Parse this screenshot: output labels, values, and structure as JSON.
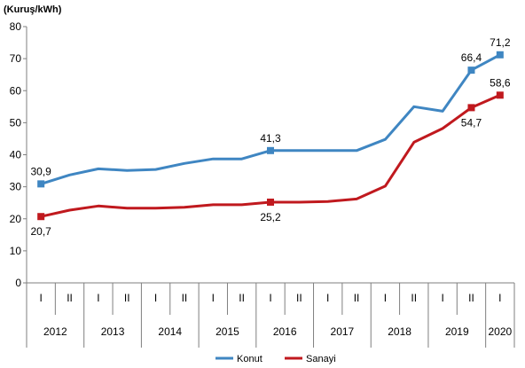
{
  "chart_data": {
    "type": "line",
    "title": "",
    "ylabel": "(Kuruş/kWh)",
    "ylim": [
      0,
      80
    ],
    "yticks": [
      0,
      10,
      20,
      30,
      40,
      50,
      60,
      70,
      80
    ],
    "periods": [
      "I",
      "II",
      "I",
      "II",
      "I",
      "II",
      "I",
      "II",
      "I",
      "II",
      "I",
      "II",
      "I",
      "II",
      "I",
      "II",
      "I"
    ],
    "years": [
      {
        "label": "2012",
        "span": 2
      },
      {
        "label": "2013",
        "span": 2
      },
      {
        "label": "2014",
        "span": 2
      },
      {
        "label": "2015",
        "span": 2
      },
      {
        "label": "2016",
        "span": 2
      },
      {
        "label": "2017",
        "span": 2
      },
      {
        "label": "2018",
        "span": 2
      },
      {
        "label": "2019",
        "span": 2
      },
      {
        "label": "2020",
        "span": 1
      }
    ],
    "series": [
      {
        "name": "Konut",
        "color": "#3f86c2",
        "x": [
          0,
          0.5,
          1,
          1.5,
          2,
          2.5,
          3,
          3.5,
          4,
          4.5,
          5,
          5.5,
          6,
          6.5,
          7,
          7.5,
          8
        ],
        "values": [
          30.9,
          33.7,
          35.6,
          35.1,
          35.4,
          37.3,
          38.7,
          38.7,
          41.3,
          41.3,
          41.3,
          41.3,
          44.8,
          55.0,
          53.6,
          66.4,
          71.2
        ],
        "markers": [
          0,
          8,
          15,
          16
        ],
        "marker_labels": [
          "30,9",
          "41,3",
          "66,4",
          "71,2"
        ],
        "label_pos": [
          "above",
          "above",
          "above",
          "above"
        ]
      },
      {
        "name": "Sanayi",
        "color": "#c0191e",
        "x": [
          0,
          0.5,
          1,
          1.5,
          2,
          2.5,
          3,
          3.5,
          4,
          4.5,
          5,
          5.5,
          6,
          6.5,
          7,
          7.5,
          8
        ],
        "values": [
          20.7,
          22.7,
          24.0,
          23.3,
          23.3,
          23.6,
          24.4,
          24.4,
          25.2,
          25.2,
          25.4,
          26.2,
          30.2,
          43.9,
          48.2,
          54.7,
          58.6
        ],
        "markers": [
          0,
          8,
          15,
          16
        ],
        "marker_labels": [
          "20,7",
          "25,2",
          "54,7",
          "58,6"
        ],
        "label_pos": [
          "below",
          "below",
          "below",
          "above"
        ]
      }
    ],
    "legend": {
      "placement": "bottom-right",
      "items": [
        "Konut",
        "Sanayi"
      ]
    }
  }
}
